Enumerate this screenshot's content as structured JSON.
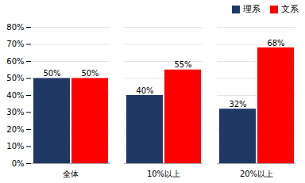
{
  "chart_data": {
    "type": "bar",
    "categories": [
      "全体",
      "10%以上",
      "20%以上"
    ],
    "series": [
      {
        "name": "理系",
        "color": "#1F3864",
        "values": [
          50,
          40,
          32
        ],
        "value_labels": [
          "50%",
          "40%",
          "32%"
        ]
      },
      {
        "name": "文系",
        "color": "#FF0000",
        "values": [
          50,
          55,
          68
        ],
        "value_labels": [
          "50%",
          "55%",
          "68%"
        ]
      }
    ],
    "ylim": [
      0,
      80
    ],
    "yticks": [
      {
        "value": 0,
        "label": "0%"
      },
      {
        "value": 10,
        "label": "10%"
      },
      {
        "value": 20,
        "label": "20%"
      },
      {
        "value": 30,
        "label": "30%"
      },
      {
        "value": 40,
        "label": "40%"
      },
      {
        "value": 50,
        "label": "50%"
      },
      {
        "value": 60,
        "label": "60%"
      },
      {
        "value": 70,
        "label": "70%"
      },
      {
        "value": 80,
        "label": "80%"
      }
    ],
    "grid": true,
    "data_labels": true,
    "legend": "upper right"
  }
}
